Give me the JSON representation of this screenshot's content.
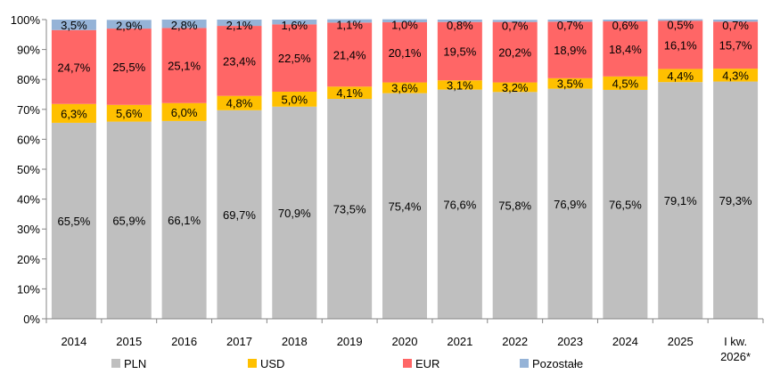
{
  "chart_data": {
    "type": "bar",
    "stacked": true,
    "categories": [
      "2014",
      "2015",
      "2016",
      "2017",
      "2018",
      "2019",
      "2020",
      "2021",
      "2022",
      "2023",
      "2024",
      "2025",
      "I kw. 2026*"
    ],
    "series": [
      {
        "name": "PLN",
        "color": "#bfbfbf",
        "values": [
          65.5,
          65.9,
          66.1,
          69.7,
          70.9,
          73.5,
          75.4,
          76.6,
          75.8,
          76.9,
          76.5,
          79.1,
          79.3
        ],
        "labels": [
          "65,5%",
          "65,9%",
          "66,1%",
          "69,7%",
          "70,9%",
          "73,5%",
          "75,4%",
          "76,6%",
          "75,8%",
          "76,9%",
          "76,5%",
          "79,1%",
          "79,3%"
        ]
      },
      {
        "name": "USD",
        "color": "#ffc000",
        "values": [
          6.3,
          5.6,
          6.0,
          4.8,
          5.0,
          4.1,
          3.6,
          3.1,
          3.2,
          3.5,
          4.5,
          4.4,
          4.3
        ],
        "labels": [
          "6,3%",
          "5,6%",
          "6,0%",
          "4,8%",
          "5,0%",
          "4,1%",
          "3,6%",
          "3,1%",
          "3,2%",
          "3,5%",
          "4,5%",
          "4,4%",
          "4,3%"
        ]
      },
      {
        "name": "EUR",
        "color": "#ff6666",
        "values": [
          24.7,
          25.5,
          25.1,
          23.4,
          22.5,
          21.4,
          20.1,
          19.5,
          20.2,
          18.9,
          18.4,
          16.1,
          15.7
        ],
        "labels": [
          "24,7%",
          "25,5%",
          "25,1%",
          "23,4%",
          "22,5%",
          "21,4%",
          "20,1%",
          "19,5%",
          "20,2%",
          "18,9%",
          "18,4%",
          "16,1%",
          "15,7%"
        ]
      },
      {
        "name": "Pozostałe",
        "color": "#95b3d7",
        "values": [
          3.5,
          2.9,
          2.8,
          2.1,
          1.6,
          1.1,
          1.0,
          0.8,
          0.7,
          0.7,
          0.6,
          0.5,
          0.7
        ],
        "labels": [
          "3,5%",
          "2,9%",
          "2,8%",
          "2,1%",
          "1,6%",
          "1,1%",
          "1,0%",
          "0,8%",
          "0,7%",
          "0,7%",
          "0,6%",
          "0,5%",
          "0,7%"
        ]
      }
    ],
    "yticks": [
      "0%",
      "10%",
      "20%",
      "30%",
      "40%",
      "50%",
      "60%",
      "70%",
      "80%",
      "90%",
      "100%"
    ],
    "ylim": [
      0,
      100
    ],
    "grid": false,
    "legend": "bottom"
  }
}
